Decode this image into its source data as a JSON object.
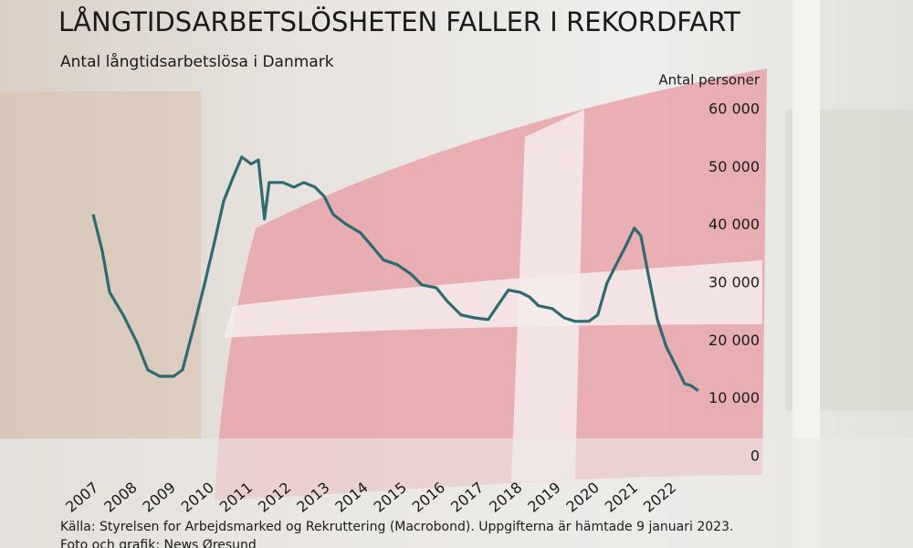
{
  "chart_data": {
    "type": "line",
    "title": "LÅNGTIDSARBETSLÖSHETEN FALLER I REKORDFART",
    "subtitle": "Antal långtidsarbetslösa i Danmark",
    "y_axis_label": "Antal personer",
    "source": "Källa: Styrelsen for Arbejdsmarked og Rekruttering (Macrobond). Uppgifterna är hämtade 9 januari 2023.",
    "credit": "Foto och grafik: News Øresund",
    "color": "#2e6a70",
    "x": [
      2007.0,
      2007.24,
      2007.43,
      2007.78,
      2008.14,
      2008.42,
      2008.73,
      2009.09,
      2009.32,
      2009.6,
      2009.9,
      2010.15,
      2010.39,
      2010.63,
      2010.86,
      2011.1,
      2011.29,
      2011.45,
      2011.57,
      2011.93,
      2012.21,
      2012.47,
      2012.76,
      2013.0,
      2013.23,
      2013.54,
      2013.94,
      2014.25,
      2014.54,
      2014.89,
      2015.25,
      2015.53,
      2015.91,
      2016.19,
      2016.55,
      2016.9,
      2017.26,
      2017.5,
      2017.78,
      2018.09,
      2018.33,
      2018.56,
      2018.92,
      2019.23,
      2019.51,
      2019.87,
      2020.1,
      2020.34,
      2020.58,
      2020.82,
      2021.05,
      2021.22,
      2021.41,
      2021.65,
      2021.88,
      2022.12,
      2022.36,
      2022.52,
      2022.71
    ],
    "values": [
      41900,
      35500,
      28400,
      24500,
      19700,
      15000,
      13900,
      13900,
      15000,
      22100,
      30000,
      37100,
      44200,
      48200,
      51800,
      50600,
      51300,
      41100,
      47400,
      47400,
      46600,
      47400,
      46600,
      45000,
      41900,
      40300,
      38700,
      36300,
      34000,
      33200,
      31600,
      29700,
      29200,
      26900,
      24500,
      24000,
      23700,
      26100,
      28800,
      28400,
      27600,
      26100,
      25600,
      24000,
      23400,
      23400,
      24500,
      30000,
      33200,
      36300,
      39500,
      38200,
      31600,
      23700,
      19000,
      15800,
      12600,
      12300,
      11400
    ],
    "xlim": [
      2007,
      2023
    ],
    "xticks": [
      2007,
      2008,
      2009,
      2010,
      2011,
      2012,
      2013,
      2014,
      2015,
      2016,
      2017,
      2018,
      2019,
      2020,
      2021,
      2022
    ],
    "ylim": [
      0,
      60000
    ],
    "yticks": [
      {
        "value": 0,
        "label": "0"
      },
      {
        "value": 10000,
        "label": "10 000"
      },
      {
        "value": 20000,
        "label": "20 000"
      },
      {
        "value": 30000,
        "label": "30 000"
      },
      {
        "value": 40000,
        "label": "40 000"
      },
      {
        "value": 50000,
        "label": "50 000"
      },
      {
        "value": 60000,
        "label": "60 000"
      }
    ]
  }
}
